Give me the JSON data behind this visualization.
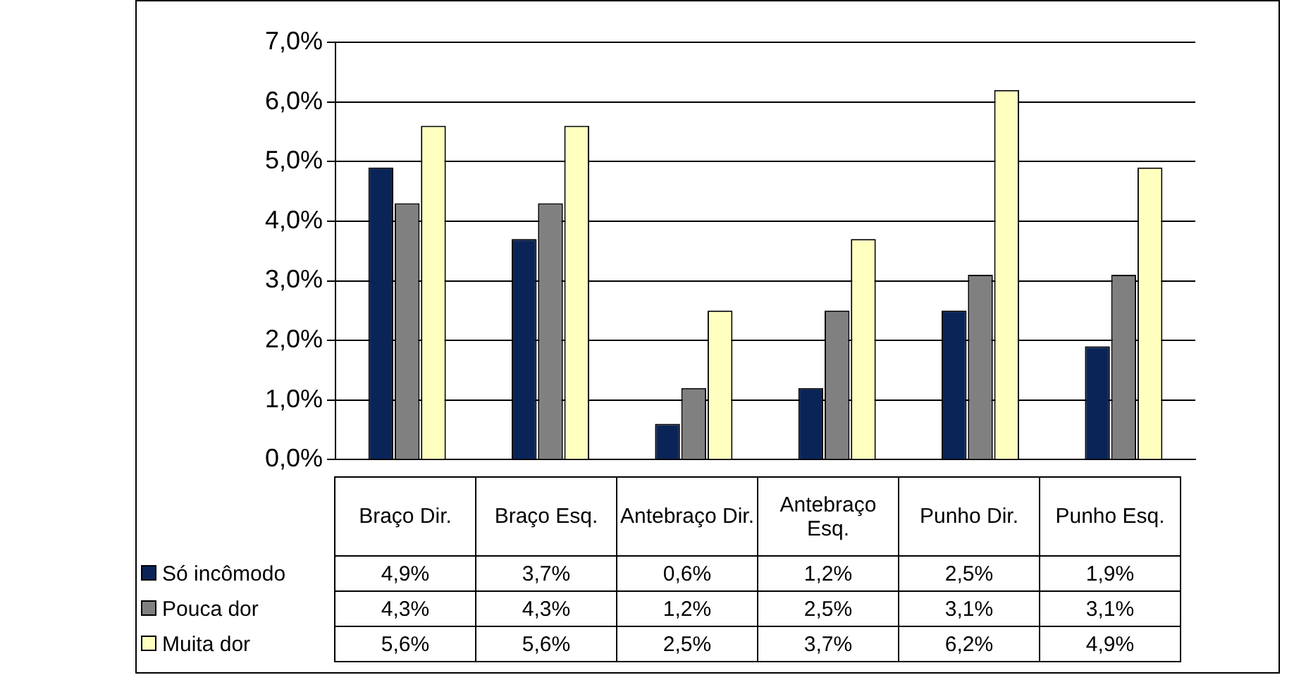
{
  "chart_data": {
    "type": "bar",
    "categories": [
      "Braço Dir.",
      "Braço Esq.",
      "Antebraço Dir.",
      "Antebraço Esq.",
      "Punho Dir.",
      "Punho Esq."
    ],
    "series": [
      {
        "name": "Só incômodo",
        "color": "#0a2458",
        "values": [
          4.9,
          3.7,
          0.6,
          1.2,
          2.5,
          1.9
        ],
        "value_labels": [
          "4,9%",
          "3,7%",
          "0,6%",
          "1,2%",
          "2,5%",
          "1,9%"
        ]
      },
      {
        "name": "Pouca dor",
        "color": "#808080",
        "values": [
          4.3,
          4.3,
          1.2,
          2.5,
          3.1,
          3.1
        ],
        "value_labels": [
          "4,3%",
          "4,3%",
          "1,2%",
          "2,5%",
          "3,1%",
          "3,1%"
        ]
      },
      {
        "name": "Muita dor",
        "color": "#ffffc0",
        "values": [
          5.6,
          5.6,
          2.5,
          3.7,
          6.2,
          4.9
        ],
        "value_labels": [
          "5,6%",
          "5,6%",
          "2,5%",
          "3,7%",
          "6,2%",
          "4,9%"
        ]
      }
    ],
    "ylim": [
      0,
      7
    ],
    "yticks": [
      {
        "value": 0,
        "label": "0,0%"
      },
      {
        "value": 1,
        "label": "1,0%"
      },
      {
        "value": 2,
        "label": "2,0%"
      },
      {
        "value": 3,
        "label": "3,0%"
      },
      {
        "value": 4,
        "label": "4,0%"
      },
      {
        "value": 5,
        "label": "5,0%"
      },
      {
        "value": 6,
        "label": "6,0%"
      },
      {
        "value": 7,
        "label": "7,0%"
      }
    ],
    "grid": "y",
    "legend": "bottom"
  }
}
